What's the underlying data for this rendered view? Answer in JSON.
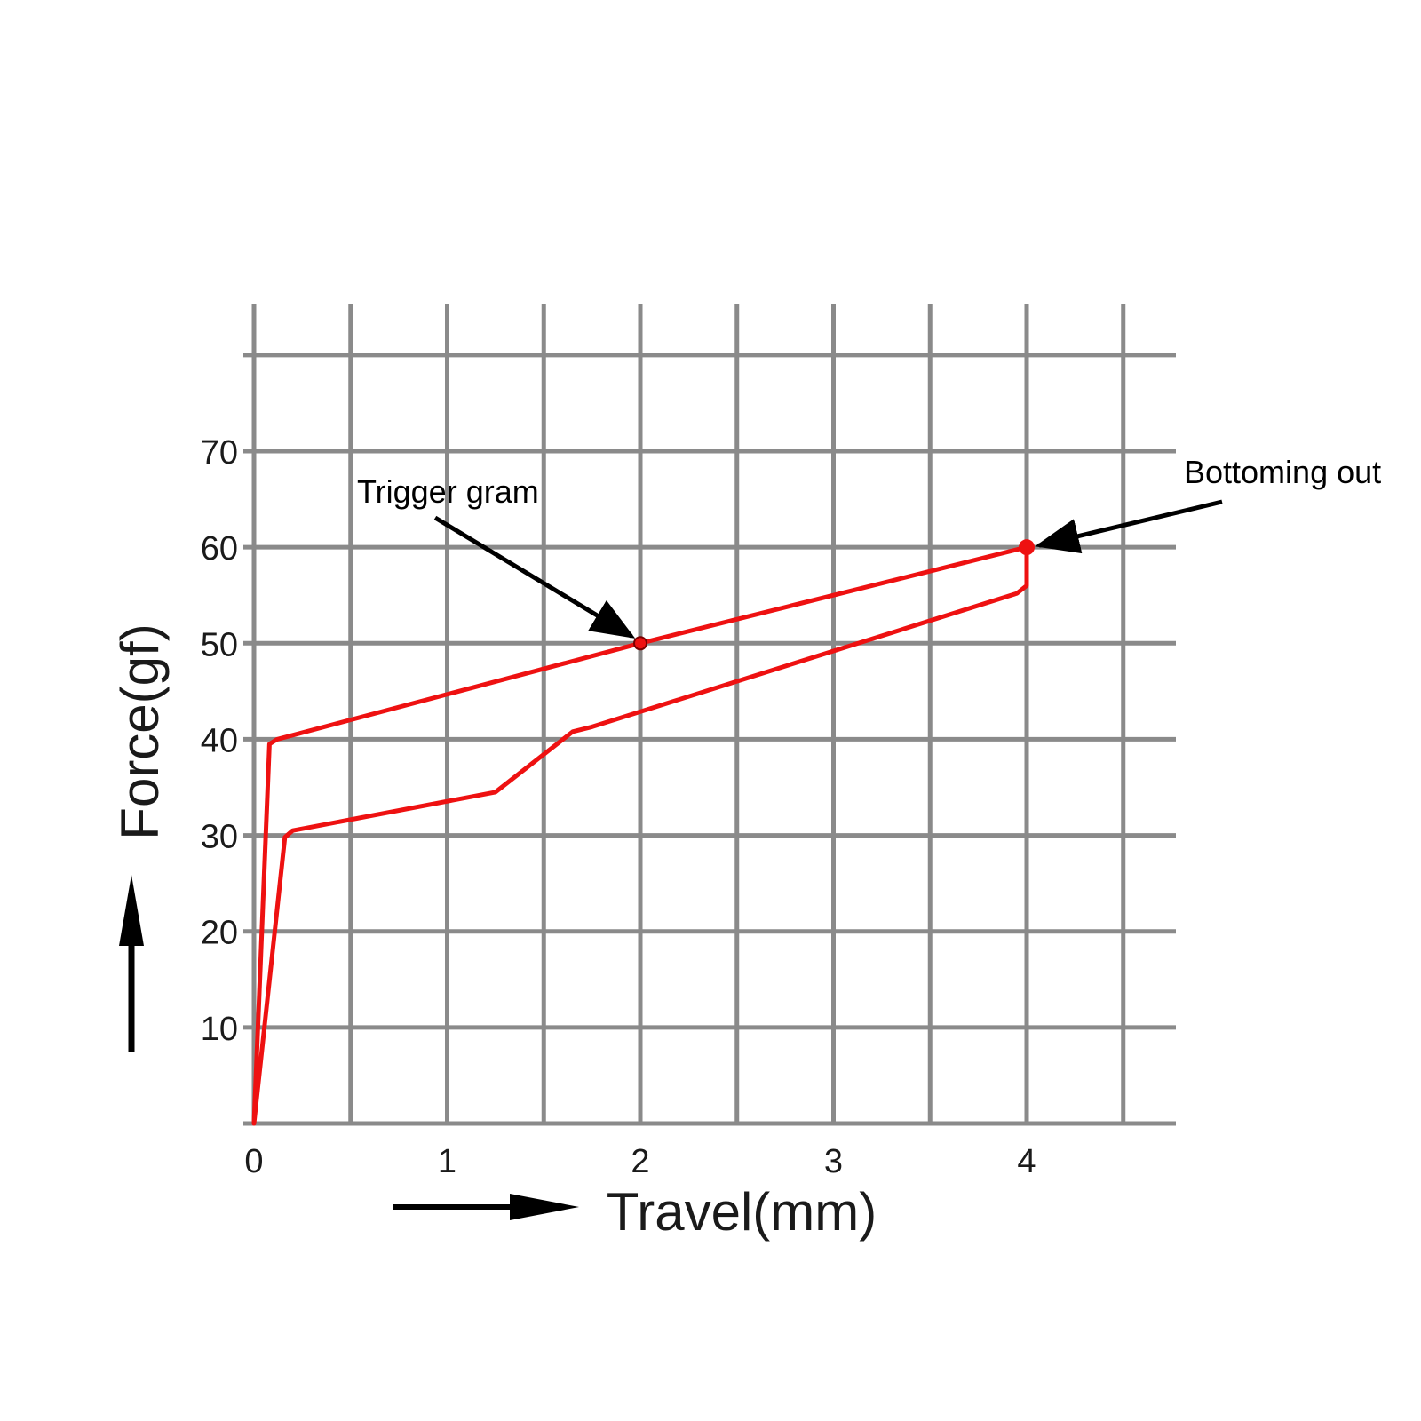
{
  "chart_data": {
    "type": "line",
    "title": "",
    "xlabel": "Travel(mm)",
    "ylabel": "Force(gf)",
    "xlim": [
      0,
      4.5
    ],
    "ylim": [
      0,
      80
    ],
    "x_ticks": [
      0,
      1,
      2,
      3,
      4
    ],
    "x_tick_labels": [
      "0",
      "1",
      "2",
      "3",
      "4"
    ],
    "y_ticks": [
      10,
      20,
      30,
      40,
      50,
      60,
      70
    ],
    "y_tick_labels": [
      "10",
      "20",
      "30",
      "40",
      "50",
      "60",
      "70"
    ],
    "x_grid_step": 0.5,
    "y_grid_step": 10,
    "grid": true,
    "series": [
      {
        "x": [
          0,
          0.08,
          0.12,
          2.0,
          4.0,
          4.0,
          3.95,
          1.75,
          1.65,
          1.25,
          0.2,
          0.16,
          0
        ],
        "y": [
          0,
          39.5,
          40,
          50,
          60,
          56,
          55.2,
          41.3,
          40.8,
          34.5,
          30.5,
          29.8,
          0
        ]
      }
    ],
    "annotations": [
      {
        "text": "Trigger gram",
        "x": 2.0,
        "y": 50
      },
      {
        "text": "Bottoming out",
        "x": 4.0,
        "y": 60
      }
    ],
    "colors": {
      "curve": "#ee1111",
      "grid": "#8a8a8a",
      "text": "#1a1a1a",
      "arrow": "#000000"
    }
  }
}
